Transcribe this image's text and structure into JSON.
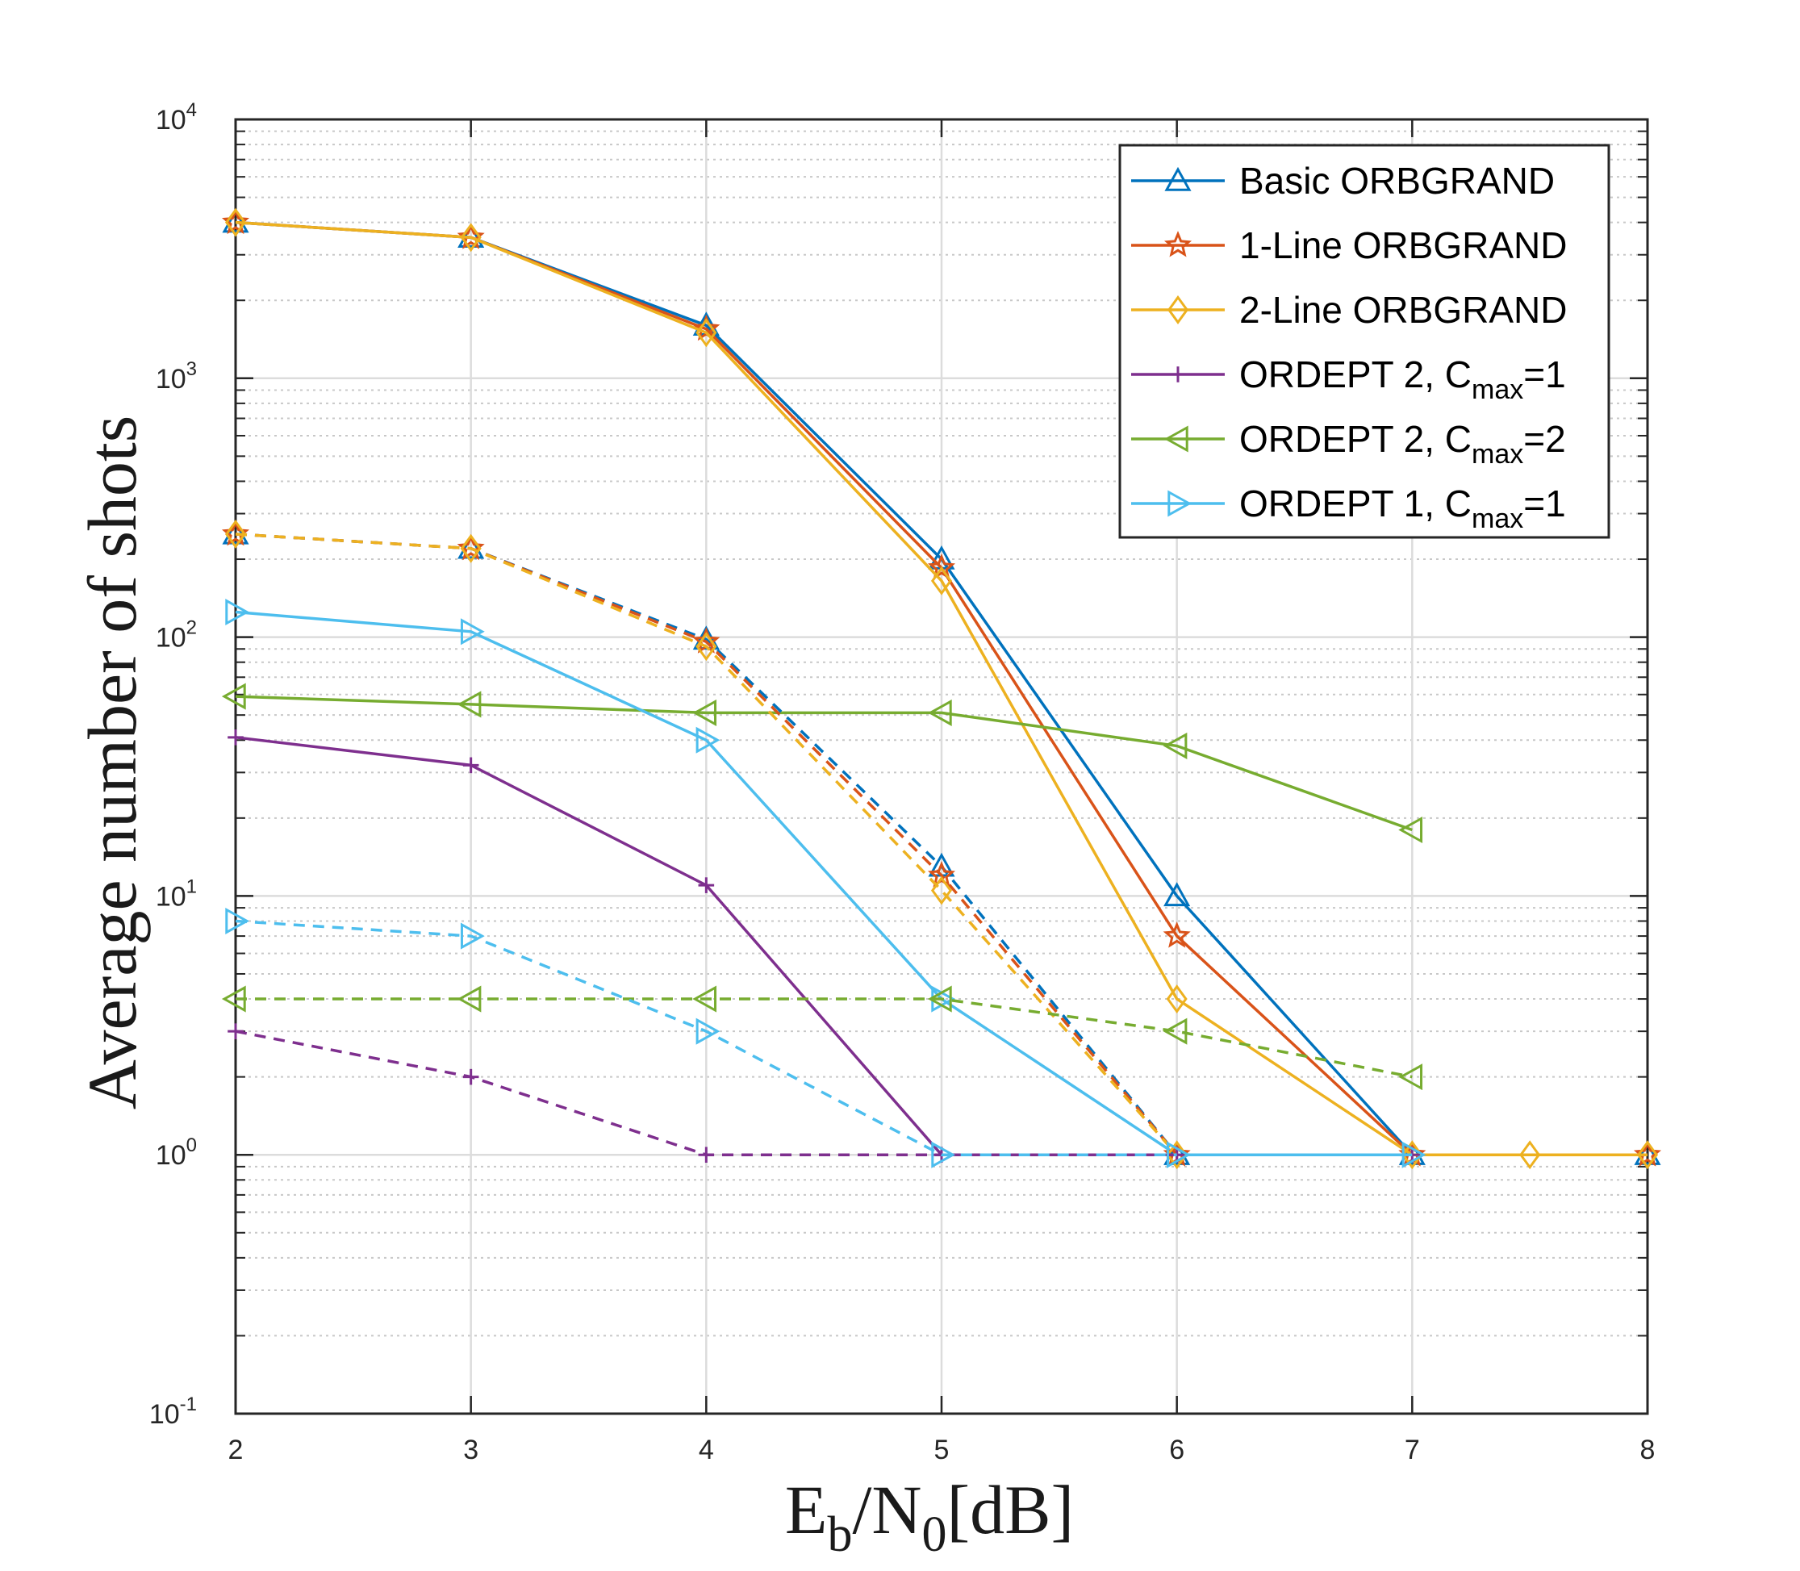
{
  "chart_data": {
    "type": "line",
    "xlabel": {
      "main": "E",
      "sub1": "b",
      "mid": "/N",
      "sub2": "0",
      "tail": "[dB]"
    },
    "ylabel": "Average number of shots",
    "xlim": [
      2,
      8
    ],
    "ylim": [
      0.1,
      10000
    ],
    "yscale": "log",
    "grid": true,
    "legend_position": "top-right",
    "x_ticks": [
      "2",
      "3",
      "4",
      "5",
      "6",
      "7",
      "8"
    ],
    "y_ticks": [
      {
        "base": "10",
        "exp": "-1"
      },
      {
        "base": "10",
        "exp": "0"
      },
      {
        "base": "10",
        "exp": "1"
      },
      {
        "base": "10",
        "exp": "2"
      },
      {
        "base": "10",
        "exp": "3"
      },
      {
        "base": "10",
        "exp": "4"
      }
    ],
    "legend": [
      {
        "text": "Basic ORBGRAND",
        "sub": "",
        "tail": "",
        "color": "#0072BD",
        "marker": "triangle-up"
      },
      {
        "text": "1-Line ORBGRAND",
        "sub": "",
        "tail": "",
        "color": "#D95319",
        "marker": "star"
      },
      {
        "text": "2-Line ORBGRAND",
        "sub": "",
        "tail": "",
        "color": "#EDB120",
        "marker": "diamond"
      },
      {
        "text": "ORDEPT 2, C",
        "sub": "max",
        "tail": "=1",
        "color": "#7E2F8E",
        "marker": "plus"
      },
      {
        "text": "ORDEPT 2, C",
        "sub": "max",
        "tail": "=2",
        "color": "#77AC30",
        "marker": "triangle-left"
      },
      {
        "text": "ORDEPT 1, C",
        "sub": "max",
        "tail": "=1",
        "color": "#4DBEEE",
        "marker": "triangle-right"
      }
    ],
    "series": [
      {
        "name": "Basic ORBGRAND",
        "color": "#0072BD",
        "marker": "triangle-up",
        "dash": false,
        "x": [
          2,
          3,
          4,
          5,
          6,
          7,
          8
        ],
        "values": [
          4000,
          3500,
          1600,
          200,
          10,
          1,
          1
        ]
      },
      {
        "name": "1-Line ORBGRAND",
        "color": "#D95319",
        "marker": "star",
        "dash": false,
        "x": [
          2,
          3,
          4,
          5,
          6,
          7,
          8
        ],
        "values": [
          4000,
          3500,
          1550,
          185,
          7,
          1,
          1
        ]
      },
      {
        "name": "2-Line ORBGRAND",
        "color": "#EDB120",
        "marker": "diamond",
        "dash": false,
        "x": [
          2,
          3,
          4,
          5,
          6,
          7,
          7.5,
          8
        ],
        "values": [
          4000,
          3500,
          1500,
          165,
          4,
          1,
          1,
          1
        ]
      },
      {
        "name": "ORDEPT 2, Cmax=1",
        "color": "#7E2F8E",
        "marker": "plus",
        "dash": false,
        "x": [
          2,
          3,
          4,
          5,
          6,
          7
        ],
        "values": [
          41,
          32,
          11,
          1,
          1,
          1
        ]
      },
      {
        "name": "ORDEPT 2, Cmax=2",
        "color": "#77AC30",
        "marker": "triangle-left",
        "dash": false,
        "x": [
          2,
          3,
          4,
          5,
          6,
          7
        ],
        "values": [
          59,
          55,
          51,
          51,
          38,
          18
        ]
      },
      {
        "name": "ORDEPT 1, Cmax=1",
        "color": "#4DBEEE",
        "marker": "triangle-right",
        "dash": false,
        "x": [
          2,
          3,
          4,
          5,
          6,
          7
        ],
        "values": [
          125,
          105,
          40,
          4,
          1,
          1
        ]
      },
      {
        "name": "Basic ORBGRAND (dashed)",
        "color": "#0072BD",
        "marker": "triangle-up",
        "dash": true,
        "x": [
          2,
          3,
          4,
          5,
          6
        ],
        "values": [
          250,
          220,
          98,
          13,
          1
        ]
      },
      {
        "name": "1-Line ORBGRAND (dashed)",
        "color": "#D95319",
        "marker": "star",
        "dash": true,
        "x": [
          2,
          3,
          4,
          5,
          6
        ],
        "values": [
          250,
          220,
          96,
          12,
          1
        ]
      },
      {
        "name": "2-Line ORBGRAND (dashed)",
        "color": "#EDB120",
        "marker": "diamond",
        "dash": true,
        "x": [
          2,
          3,
          4,
          5,
          6
        ],
        "values": [
          250,
          220,
          92,
          10.5,
          1
        ]
      },
      {
        "name": "ORDEPT 2, Cmax=1 (dashed)",
        "color": "#7E2F8E",
        "marker": "plus",
        "dash": true,
        "x": [
          2,
          3,
          4,
          5,
          6
        ],
        "values": [
          3,
          2,
          1,
          1,
          1
        ]
      },
      {
        "name": "ORDEPT 2, Cmax=2 (dashed)",
        "color": "#77AC30",
        "marker": "triangle-left",
        "dash": true,
        "x": [
          2,
          3,
          4,
          5,
          6,
          7
        ],
        "values": [
          4,
          4,
          4,
          4,
          3,
          2
        ]
      },
      {
        "name": "ORDEPT 1, Cmax=1 (dashed)",
        "color": "#4DBEEE",
        "marker": "triangle-right",
        "dash": true,
        "x": [
          2,
          3,
          4,
          5,
          6
        ],
        "values": [
          8,
          7,
          3,
          1,
          1
        ]
      }
    ]
  }
}
